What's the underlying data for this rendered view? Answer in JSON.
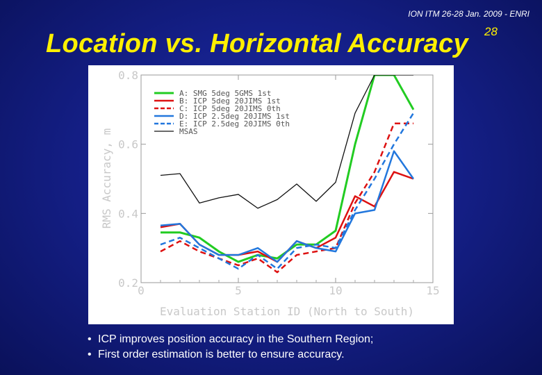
{
  "header": {
    "caption": "ION ITM 26-28 Jan. 2009 - ENRI"
  },
  "slide": {
    "title": "Location vs. Horizontal Accuracy",
    "page_number": "28"
  },
  "bullets": [
    {
      "marker": "•",
      "text": "ICP improves position accuracy in the Southern Region;"
    },
    {
      "marker": "•",
      "text": "First order estimation is better to ensure accuracy."
    }
  ],
  "chart_data": {
    "type": "line",
    "xlabel": "Evaluation Station ID (North to South)",
    "ylabel": "RMS Accuracy, m",
    "xlim": [
      0,
      15
    ],
    "ylim": [
      0.2,
      0.8
    ],
    "xticks": [
      0,
      5,
      10,
      15
    ],
    "yticks": [
      0.2,
      0.4,
      0.6,
      0.8
    ],
    "ytick_labels": [
      "0.2",
      "0.4",
      "0.6",
      "0.8"
    ],
    "legend_position": "top-left",
    "x": [
      1,
      2,
      3,
      4,
      5,
      6,
      7,
      8,
      9,
      10,
      11,
      12,
      13,
      14
    ],
    "series": [
      {
        "name": "A: SMG 5deg 5GMS 1st",
        "color": "#22cc22",
        "dash": "solid",
        "width": 3,
        "values": [
          0.345,
          0.345,
          0.33,
          0.29,
          0.26,
          0.28,
          0.27,
          0.31,
          0.31,
          0.35,
          0.6,
          0.8,
          0.8,
          0.7
        ]
      },
      {
        "name": "B: ICP 5deg 20JIMS 1st",
        "color": "#dd1111",
        "dash": "solid",
        "width": 2.5,
        "values": [
          0.36,
          0.37,
          0.31,
          0.28,
          0.28,
          0.29,
          0.26,
          0.32,
          0.3,
          0.33,
          0.45,
          0.42,
          0.52,
          0.5
        ]
      },
      {
        "name": "C: ICP 5deg 20JIMS 0th",
        "color": "#dd1111",
        "dash": "dashed",
        "width": 2.5,
        "values": [
          0.29,
          0.32,
          0.29,
          0.27,
          0.25,
          0.27,
          0.23,
          0.28,
          0.29,
          0.3,
          0.43,
          0.52,
          0.66,
          0.66
        ]
      },
      {
        "name": "D: ICP 2.5deg 20JIMS 1st",
        "color": "#2277dd",
        "dash": "solid",
        "width": 2.5,
        "values": [
          0.365,
          0.37,
          0.31,
          0.28,
          0.28,
          0.3,
          0.26,
          0.32,
          0.3,
          0.29,
          0.4,
          0.41,
          0.58,
          0.5
        ]
      },
      {
        "name": "E: ICP 2.5deg 20JIMS 0th",
        "color": "#2277dd",
        "dash": "dashed",
        "width": 2.5,
        "values": [
          0.31,
          0.33,
          0.3,
          0.27,
          0.24,
          0.28,
          0.24,
          0.3,
          0.31,
          0.3,
          0.41,
          0.5,
          0.6,
          0.69
        ]
      },
      {
        "name": "MSAS",
        "color": "#111111",
        "dash": "solid",
        "width": 1.3,
        "values": [
          0.51,
          0.515,
          0.43,
          0.445,
          0.455,
          0.415,
          0.44,
          0.485,
          0.435,
          0.49,
          0.69,
          0.8,
          0.8,
          0.8
        ]
      }
    ]
  }
}
